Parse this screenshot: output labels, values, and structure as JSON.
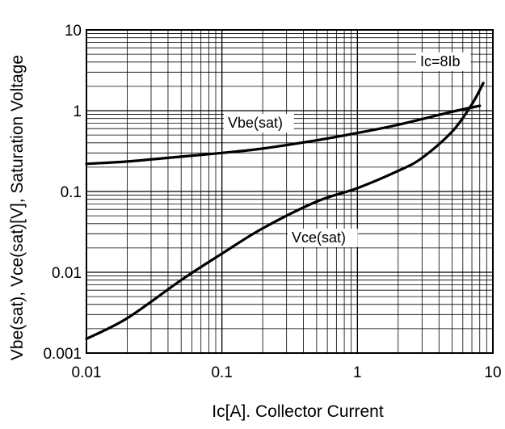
{
  "chart_data": {
    "type": "line",
    "title": "",
    "xlabel": "Ic[A]. Collector Current",
    "ylabel": "Vbe(sat), Vce(sat)[V], Saturation Voltage",
    "x_scale": "log",
    "y_scale": "log",
    "xlim": [
      0.01,
      10
    ],
    "ylim": [
      0.001,
      10
    ],
    "x_ticks": [
      "0.01",
      "0.1",
      "1",
      "10"
    ],
    "y_ticks": [
      "10",
      "1",
      "0.1",
      "0.01",
      "0.001"
    ],
    "grid": true,
    "condition_label": "Ic=8Ib",
    "series": [
      {
        "name": "Vbe(sat)",
        "x": [
          0.01,
          0.02,
          0.05,
          0.1,
          0.2,
          0.5,
          1,
          2,
          5,
          8
        ],
        "y": [
          0.22,
          0.235,
          0.27,
          0.3,
          0.34,
          0.43,
          0.53,
          0.67,
          0.97,
          1.15
        ]
      },
      {
        "name": "Vce(sat)",
        "x": [
          0.01,
          0.02,
          0.05,
          0.1,
          0.2,
          0.5,
          1,
          2,
          3,
          5,
          7,
          8.5
        ],
        "y": [
          0.0015,
          0.0027,
          0.008,
          0.017,
          0.035,
          0.075,
          0.11,
          0.18,
          0.26,
          0.55,
          1.2,
          2.2
        ]
      }
    ]
  }
}
